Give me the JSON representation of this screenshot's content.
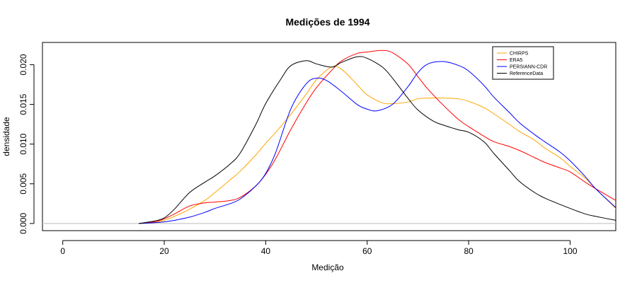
{
  "chart_data": {
    "type": "line",
    "title": "Medições de 1994",
    "xlabel": "Medição",
    "ylabel": "densidade",
    "xlim": [
      -4,
      109
    ],
    "ylim": [
      -0.0009,
      0.0228
    ],
    "xticks": [
      0,
      20,
      40,
      60,
      80,
      100
    ],
    "yticks": [
      0.0,
      0.005,
      0.01,
      0.015,
      0.02
    ],
    "ytick_labels": [
      "0.000",
      "0.005",
      "0.010",
      "0.015",
      "0.020"
    ],
    "baseline": 0,
    "baseline_color": "#bebebe",
    "grid": false,
    "legend_position": "top-right",
    "series": [
      {
        "name": "CHIRPS",
        "color": "#ffa500",
        "x": [
          15,
          18,
          20,
          22,
          25,
          28,
          30,
          33,
          35,
          38,
          40,
          42,
          45,
          48,
          50,
          53,
          55,
          58,
          60,
          63,
          65,
          68,
          70,
          72,
          75,
          78,
          80,
          83,
          85,
          88,
          90,
          93,
          95,
          98,
          100,
          103,
          105,
          109
        ],
        "y": [
          0.0,
          0.0001,
          0.0004,
          0.0009,
          0.0018,
          0.0029,
          0.0039,
          0.0055,
          0.0066,
          0.0086,
          0.0101,
          0.0115,
          0.0138,
          0.0163,
          0.0181,
          0.0197,
          0.0194,
          0.0175,
          0.0162,
          0.0152,
          0.0151,
          0.0153,
          0.0157,
          0.0158,
          0.0158,
          0.0157,
          0.0154,
          0.0146,
          0.0138,
          0.0125,
          0.0116,
          0.0105,
          0.0095,
          0.0083,
          0.0072,
          0.0057,
          0.0044,
          0.0019
        ]
      },
      {
        "name": "ERA5",
        "color": "#ff0000",
        "x": [
          15,
          18,
          20,
          22,
          25,
          28,
          30,
          33,
          35,
          38,
          40,
          42,
          45,
          48,
          50,
          53,
          55,
          58,
          60,
          63,
          65,
          68,
          70,
          72,
          75,
          78,
          80,
          83,
          85,
          88,
          90,
          93,
          95,
          98,
          100,
          103,
          105,
          109
        ],
        "y": [
          0.0,
          0.0002,
          0.0006,
          0.0012,
          0.0022,
          0.0026,
          0.0027,
          0.0029,
          0.0033,
          0.0047,
          0.0062,
          0.0082,
          0.0119,
          0.0152,
          0.0171,
          0.0193,
          0.0205,
          0.0214,
          0.0216,
          0.0218,
          0.0215,
          0.0201,
          0.0185,
          0.0169,
          0.0149,
          0.0131,
          0.0122,
          0.011,
          0.0103,
          0.0097,
          0.0092,
          0.0083,
          0.0077,
          0.007,
          0.0065,
          0.0052,
          0.0044,
          0.0029
        ]
      },
      {
        "name": "PERSIANN-CDR",
        "color": "#0000ff",
        "x": [
          15,
          18,
          20,
          22,
          25,
          28,
          30,
          33,
          35,
          38,
          40,
          42,
          45,
          48,
          50,
          52,
          55,
          58,
          60,
          62,
          65,
          68,
          70,
          72,
          75,
          78,
          80,
          83,
          85,
          88,
          90,
          93,
          95,
          98,
          100,
          103,
          105,
          109
        ],
        "y": [
          0.0,
          0.0001,
          0.0002,
          0.0004,
          0.0008,
          0.0014,
          0.0019,
          0.0025,
          0.0031,
          0.0047,
          0.0063,
          0.009,
          0.0145,
          0.0176,
          0.0183,
          0.018,
          0.0166,
          0.015,
          0.0144,
          0.0142,
          0.015,
          0.0172,
          0.019,
          0.0201,
          0.0204,
          0.0199,
          0.0192,
          0.0174,
          0.0159,
          0.014,
          0.0127,
          0.0112,
          0.0103,
          0.009,
          0.0079,
          0.0059,
          0.0044,
          0.002
        ]
      },
      {
        "name": "ReferenceData",
        "color": "#000000",
        "x": [
          15,
          18,
          20,
          22,
          25,
          28,
          30,
          33,
          35,
          38,
          40,
          43,
          45,
          48,
          50,
          53,
          55,
          58,
          60,
          63,
          65,
          68,
          70,
          73,
          75,
          78,
          80,
          83,
          85,
          88,
          90,
          93,
          95,
          98,
          100,
          103,
          105,
          109
        ],
        "y": [
          0.0,
          0.0003,
          0.0007,
          0.0018,
          0.0039,
          0.0052,
          0.006,
          0.0075,
          0.0089,
          0.0124,
          0.0151,
          0.0182,
          0.0199,
          0.0205,
          0.0201,
          0.0197,
          0.0203,
          0.021,
          0.0208,
          0.0197,
          0.0183,
          0.0158,
          0.0143,
          0.0129,
          0.0124,
          0.0118,
          0.0115,
          0.0103,
          0.0088,
          0.0067,
          0.0053,
          0.0039,
          0.0032,
          0.0024,
          0.0019,
          0.0012,
          0.0009,
          0.0004
        ]
      }
    ]
  }
}
